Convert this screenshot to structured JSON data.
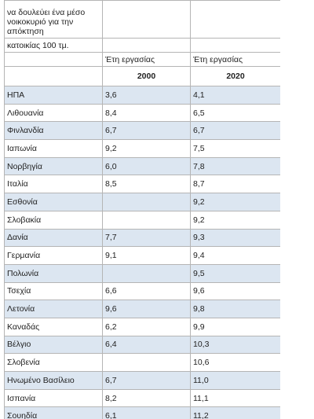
{
  "table": {
    "intro_cut": "να δουλεύει ένα μέσο νοικοκυριό για την απόκτηση",
    "intro_end": "κατοικίας 100 τμ.",
    "col_headers": [
      "Έτη εργασίας",
      "Έτη εργασίας"
    ],
    "years": [
      "2000",
      "2020"
    ],
    "rows": [
      [
        "ΗΠΑ",
        "3,6",
        "4,1"
      ],
      [
        "Λιθουανία",
        "8,4",
        "6,5"
      ],
      [
        "Φινλανδία",
        "6,7",
        "6,7"
      ],
      [
        "Ιαπωνία",
        "9,2",
        "7,5"
      ],
      [
        "Νορβηγία",
        "6,0",
        "7,8"
      ],
      [
        "Ιταλία",
        "8,5",
        "8,7"
      ],
      [
        "Εσθονία",
        null,
        "9,2"
      ],
      [
        "Σλοβακία",
        null,
        "9,2"
      ],
      [
        "Δανία",
        "7,7",
        "9,3"
      ],
      [
        "Γερμανία",
        "9,1",
        "9,4"
      ],
      [
        "Πολωνία",
        null,
        "9,5"
      ],
      [
        "Τσεχία",
        "6,6",
        "9,6"
      ],
      [
        "Λετονία",
        "9,6",
        "9,8"
      ],
      [
        "Καναδάς",
        "6,2",
        "9,9"
      ],
      [
        "Βέλγιο",
        "6,4",
        "10,3"
      ],
      [
        "Σλοβενία",
        null,
        "10,6"
      ],
      [
        "Ηνωμένο Βασίλειο",
        "6,7",
        "11,0"
      ],
      [
        "Ισπανία",
        "8,2",
        "11,1"
      ],
      [
        "Σουηδία",
        "6,1",
        "11,2"
      ]
    ]
  }
}
